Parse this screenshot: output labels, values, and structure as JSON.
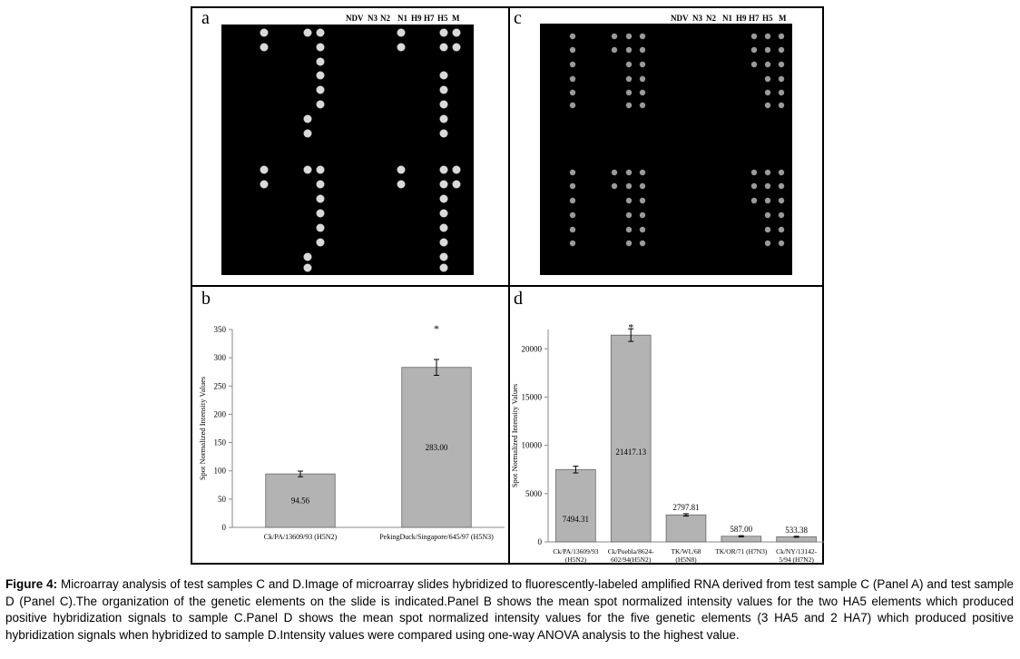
{
  "panels": {
    "a": {
      "letter": "a",
      "column_labels": [
        "NDV",
        "N3",
        "N2",
        "N1",
        "H9",
        "H7",
        "H5",
        "M"
      ]
    },
    "b": {
      "letter": "b",
      "chart_data": {
        "type": "bar",
        "categories": [
          "Ck/PA/13609/93 (H5N2)",
          "PekingDuck/Singapore/645/97 (H5N3)"
        ],
        "values": [
          94.56,
          283.0
        ],
        "value_labels": [
          "94.56",
          "283.00"
        ],
        "errors": [
          5,
          14
        ],
        "ylabel": "Spot Normalized Intensity Values",
        "ylim": [
          0,
          350
        ],
        "yticks": [
          "0",
          "50",
          "100",
          "150",
          "200",
          "250",
          "300",
          "350"
        ],
        "annotation": "*",
        "bar_color": "#b3b3b3"
      }
    },
    "c": {
      "letter": "c",
      "column_labels": [
        "NDV",
        "N3",
        "N2",
        "N1",
        "H9",
        "H7",
        "H5",
        "M"
      ]
    },
    "d": {
      "letter": "d",
      "chart_data": {
        "type": "bar",
        "categories": [
          [
            "Ck/PA/13609/93",
            "(H5N2)"
          ],
          [
            "Ck/Puebla/8624-",
            "602/94(H5N2)"
          ],
          [
            "TK/WI./68",
            "(H5N8)"
          ],
          [
            "TK/OR/71 (H7N3)"
          ],
          [
            "Ck/NY/13142-",
            "5/94 (H7N2)"
          ]
        ],
        "values": [
          7494.31,
          21417.13,
          2797.81,
          587.0,
          533.38
        ],
        "value_labels": [
          "7494.31",
          "21417.13",
          "2797.81",
          "587.00",
          "533.38"
        ],
        "errors": [
          350,
          650,
          120,
          60,
          50
        ],
        "ylabel": "Spot Normalized Intensity Values",
        "ylim": [
          0,
          22000
        ],
        "yticks": [
          "0",
          "5000",
          "10000",
          "15000",
          "20000"
        ],
        "annotation": "*",
        "bar_color": "#b3b3b3"
      }
    }
  },
  "caption": {
    "label": "Figure 4:",
    "text": " Microarray analysis of test samples C and D.Image of microarray slides hybridized to fluorescently-labeled amplified RNA derived from test sample C (Panel A) and test sample D (Panel C).The organization of the genetic elements on the slide is indicated.Panel B shows the mean spot normalized intensity values for the two HA5 elements which produced positive hybridization signals to sample C.Panel D shows the mean spot normalized intensity values for the five genetic elements (3 HA5 and 2 HA7) which produced positive hybridization signals when hybridized to sample D.Intensity values were compared using one-way ANOVA analysis to the highest value."
  }
}
